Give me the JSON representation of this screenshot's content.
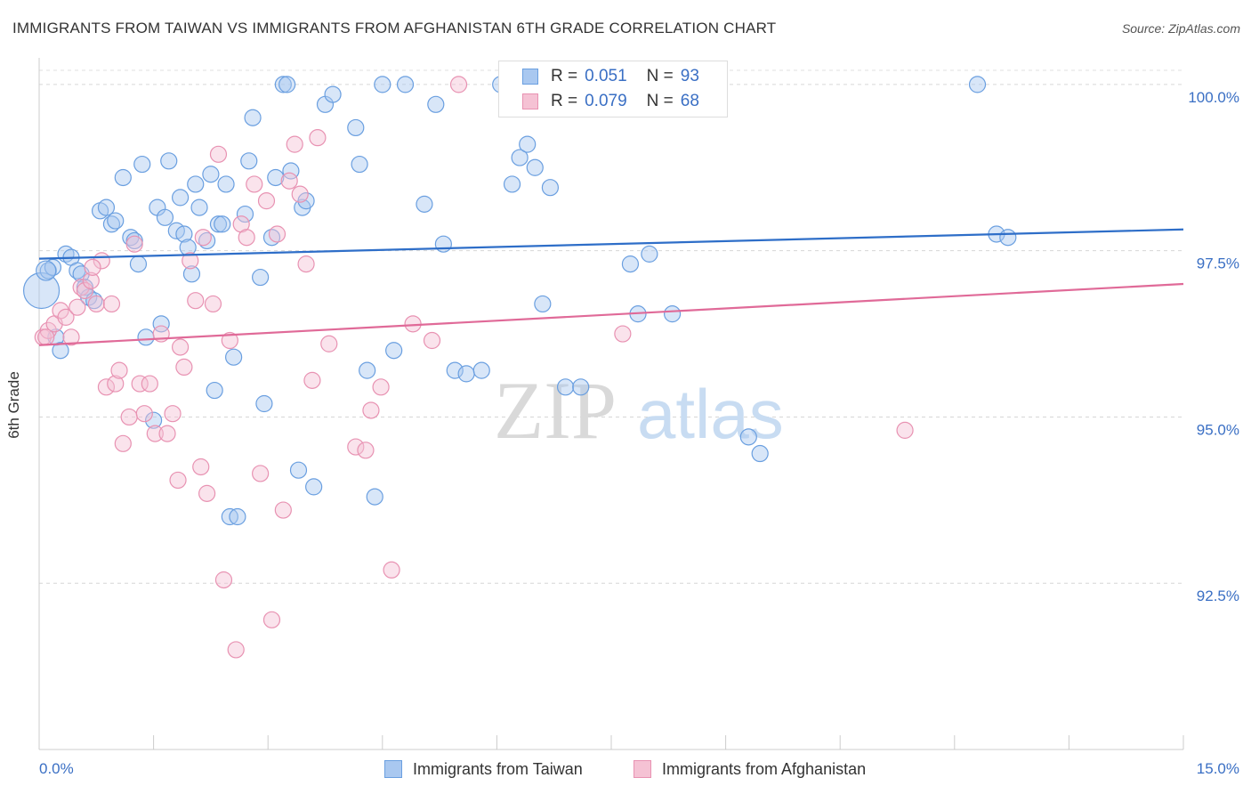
{
  "title": "IMMIGRANTS FROM TAIWAN VS IMMIGRANTS FROM AFGHANISTAN 6TH GRADE CORRELATION CHART",
  "source": "Source: ZipAtlas.com",
  "watermark": {
    "zip": "ZIP",
    "atlas": "atlas"
  },
  "legend": {
    "rows": [
      {
        "r_label": "R =",
        "r_value": "0.051",
        "n_label": "N =",
        "n_value": "93"
      },
      {
        "r_label": "R =",
        "r_value": "0.079",
        "n_label": "N =",
        "n_value": "68"
      }
    ]
  },
  "chart_data": {
    "type": "scatter",
    "xlabel": "",
    "ylabel": "6th Grade",
    "xlim": [
      0.0,
      15.0
    ],
    "ylim": [
      90.0,
      100.4
    ],
    "x_tick_labels": [
      "0.0%",
      "15.0%"
    ],
    "y_ticks": [
      92.5,
      95.0,
      97.5,
      100.0
    ],
    "y_tick_labels": [
      "92.5%",
      "95.0%",
      "97.5%",
      "100.0%"
    ],
    "grid": "horizontal dashed",
    "legend_position": "top-center",
    "series": [
      {
        "name": "Immigrants from Taiwan",
        "color": "#6a9fe0",
        "fill": "#a9c8f0",
        "line_color": "#2e6ec8",
        "trend": [
          [
            0.0,
            97.38
          ],
          [
            15.0,
            97.82
          ]
        ],
        "points": [
          [
            0.03,
            96.9
          ],
          [
            0.12,
            97.2
          ],
          [
            0.18,
            97.25
          ],
          [
            0.22,
            96.2
          ],
          [
            0.28,
            96.0
          ],
          [
            0.35,
            97.45
          ],
          [
            0.42,
            97.4
          ],
          [
            0.5,
            97.2
          ],
          [
            0.55,
            97.15
          ],
          [
            0.6,
            96.95
          ],
          [
            0.65,
            96.8
          ],
          [
            0.72,
            96.75
          ],
          [
            0.8,
            98.1
          ],
          [
            0.88,
            98.15
          ],
          [
            0.95,
            97.9
          ],
          [
            1.0,
            97.95
          ],
          [
            1.1,
            98.6
          ],
          [
            1.2,
            97.7
          ],
          [
            1.25,
            97.65
          ],
          [
            1.3,
            97.3
          ],
          [
            1.35,
            98.8
          ],
          [
            1.4,
            96.2
          ],
          [
            1.5,
            94.95
          ],
          [
            1.55,
            98.15
          ],
          [
            1.6,
            96.4
          ],
          [
            1.65,
            98.0
          ],
          [
            1.7,
            98.85
          ],
          [
            1.8,
            97.8
          ],
          [
            1.85,
            98.3
          ],
          [
            1.9,
            97.75
          ],
          [
            1.95,
            97.55
          ],
          [
            2.0,
            97.15
          ],
          [
            2.05,
            98.5
          ],
          [
            2.1,
            98.15
          ],
          [
            2.2,
            97.65
          ],
          [
            2.25,
            98.65
          ],
          [
            2.3,
            95.4
          ],
          [
            2.35,
            97.9
          ],
          [
            2.4,
            97.9
          ],
          [
            2.45,
            98.5
          ],
          [
            2.5,
            93.5
          ],
          [
            2.55,
            95.9
          ],
          [
            2.6,
            93.5
          ],
          [
            2.7,
            98.05
          ],
          [
            2.75,
            98.85
          ],
          [
            2.8,
            99.5
          ],
          [
            2.9,
            97.1
          ],
          [
            2.95,
            95.2
          ],
          [
            3.05,
            97.7
          ],
          [
            3.1,
            98.6
          ],
          [
            3.2,
            100.0
          ],
          [
            3.25,
            100.0
          ],
          [
            3.3,
            98.7
          ],
          [
            3.4,
            94.2
          ],
          [
            3.45,
            98.15
          ],
          [
            3.5,
            98.25
          ],
          [
            3.6,
            93.95
          ],
          [
            3.75,
            99.7
          ],
          [
            3.85,
            99.85
          ],
          [
            4.15,
            99.35
          ],
          [
            4.2,
            98.8
          ],
          [
            4.3,
            95.7
          ],
          [
            4.4,
            93.8
          ],
          [
            4.5,
            100.0
          ],
          [
            4.65,
            96.0
          ],
          [
            4.8,
            100.0
          ],
          [
            5.05,
            98.2
          ],
          [
            5.2,
            99.7
          ],
          [
            5.3,
            97.6
          ],
          [
            5.45,
            95.7
          ],
          [
            5.6,
            95.65
          ],
          [
            5.8,
            95.7
          ],
          [
            6.05,
            100.0
          ],
          [
            6.2,
            98.5
          ],
          [
            6.3,
            98.9
          ],
          [
            6.4,
            99.1
          ],
          [
            6.5,
            98.75
          ],
          [
            6.6,
            96.7
          ],
          [
            6.7,
            98.45
          ],
          [
            6.9,
            95.45
          ],
          [
            7.1,
            95.45
          ],
          [
            7.3,
            100.0
          ],
          [
            7.45,
            100.0
          ],
          [
            7.75,
            97.3
          ],
          [
            7.85,
            96.55
          ],
          [
            8.0,
            97.45
          ],
          [
            8.3,
            96.55
          ],
          [
            9.3,
            94.7
          ],
          [
            9.45,
            94.45
          ],
          [
            12.3,
            100.0
          ],
          [
            12.55,
            97.75
          ],
          [
            12.7,
            97.7
          ],
          [
            0.09,
            97.2
          ]
        ]
      },
      {
        "name": "Immigrants from Afghanistan",
        "color": "#e892b2",
        "fill": "#f5c2d4",
        "line_color": "#e06a98",
        "trend": [
          [
            0.0,
            96.08
          ],
          [
            15.0,
            97.0
          ]
        ],
        "points": [
          [
            0.05,
            96.2
          ],
          [
            0.12,
            96.3
          ],
          [
            0.2,
            96.4
          ],
          [
            0.28,
            96.6
          ],
          [
            0.35,
            96.5
          ],
          [
            0.42,
            96.2
          ],
          [
            0.5,
            96.65
          ],
          [
            0.55,
            96.95
          ],
          [
            0.6,
            96.9
          ],
          [
            0.68,
            97.05
          ],
          [
            0.75,
            96.7
          ],
          [
            0.82,
            97.35
          ],
          [
            0.88,
            95.45
          ],
          [
            0.95,
            96.7
          ],
          [
            1.0,
            95.5
          ],
          [
            1.05,
            95.7
          ],
          [
            1.1,
            94.6
          ],
          [
            1.18,
            95.0
          ],
          [
            1.25,
            97.6
          ],
          [
            1.32,
            95.5
          ],
          [
            1.38,
            95.05
          ],
          [
            1.45,
            95.5
          ],
          [
            1.52,
            94.75
          ],
          [
            1.6,
            96.25
          ],
          [
            1.68,
            94.75
          ],
          [
            1.75,
            95.05
          ],
          [
            1.82,
            94.05
          ],
          [
            1.9,
            95.75
          ],
          [
            1.98,
            97.35
          ],
          [
            2.05,
            96.75
          ],
          [
            2.12,
            94.25
          ],
          [
            2.2,
            93.85
          ],
          [
            2.28,
            96.7
          ],
          [
            2.35,
            98.95
          ],
          [
            2.42,
            92.55
          ],
          [
            2.5,
            96.15
          ],
          [
            2.58,
            91.5
          ],
          [
            2.65,
            97.9
          ],
          [
            2.72,
            97.7
          ],
          [
            2.82,
            98.5
          ],
          [
            2.9,
            94.15
          ],
          [
            2.98,
            98.25
          ],
          [
            3.05,
            91.95
          ],
          [
            3.12,
            97.75
          ],
          [
            3.2,
            93.6
          ],
          [
            3.28,
            98.55
          ],
          [
            3.35,
            99.1
          ],
          [
            3.42,
            98.35
          ],
          [
            3.5,
            97.3
          ],
          [
            3.58,
            95.55
          ],
          [
            3.65,
            99.2
          ],
          [
            3.8,
            96.1
          ],
          [
            4.15,
            94.55
          ],
          [
            4.28,
            94.5
          ],
          [
            4.35,
            95.1
          ],
          [
            4.48,
            95.45
          ],
          [
            4.62,
            92.7
          ],
          [
            4.9,
            96.4
          ],
          [
            5.15,
            96.15
          ],
          [
            5.5,
            100.0
          ],
          [
            6.5,
            100.0
          ],
          [
            7.65,
            96.25
          ],
          [
            8.65,
            100.0
          ],
          [
            11.35,
            94.8
          ],
          [
            0.09,
            96.2
          ],
          [
            1.85,
            96.05
          ],
          [
            0.7,
            97.25
          ],
          [
            2.15,
            97.7
          ]
        ]
      }
    ]
  }
}
